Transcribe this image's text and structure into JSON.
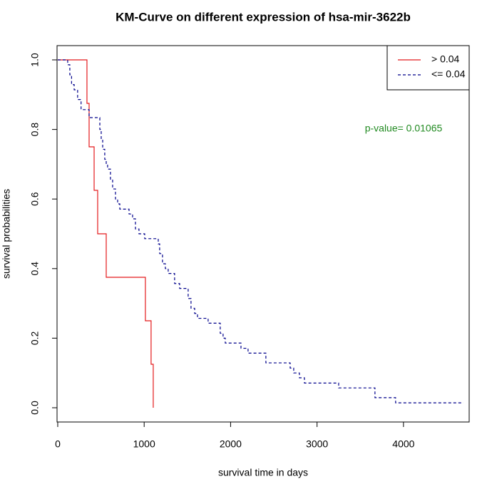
{
  "chart_data": {
    "type": "step",
    "title": "KM-Curve on different expression of hsa-mir-3622b",
    "x_label": "survival time in days",
    "y_label": "survival probabilities",
    "annotation": "p-value= 0.01065",
    "annotation_color": "#228b22",
    "xlim": [
      -8,
      4760
    ],
    "ylim": [
      -0.041,
      1.041
    ],
    "xticks": [
      0,
      1000,
      2000,
      3000,
      4000
    ],
    "yticks": [
      {
        "value": 0,
        "label": "0.0"
      },
      {
        "value": 0.2,
        "label": "0.2"
      },
      {
        "value": 0.4,
        "label": "0.4"
      },
      {
        "value": 0.6,
        "label": "0.6"
      },
      {
        "value": 0.8,
        "label": "0.8"
      },
      {
        "value": 1,
        "label": "1.0"
      }
    ],
    "legend_position": "top-right",
    "series": [
      {
        "name": "> 0.04",
        "color": "#e41a1c",
        "dash": "solid",
        "x": [
          0,
          338,
          363,
          421,
          462,
          561,
          1014,
          1080,
          1105
        ],
        "values": [
          1,
          0.875,
          0.75,
          0.625,
          0.5,
          0.375,
          0.25,
          0.125,
          0
        ]
      },
      {
        "name": "<= 0.04",
        "color": "#00008b",
        "dash": "dashed",
        "x": [
          0,
          115,
          140,
          160,
          190,
          230,
          270,
          363,
          487,
          503,
          520,
          544,
          561,
          577,
          610,
          635,
          668,
          693,
          718,
          825,
          866,
          899,
          940,
          1006,
          1163,
          1179,
          1212,
          1245,
          1278,
          1352,
          1410,
          1509,
          1542,
          1584,
          1617,
          1740,
          1880,
          1913,
          1938,
          2120,
          2202,
          2408,
          2689,
          2730,
          2796,
          2854,
          3250,
          3670,
          3909,
          4693
        ],
        "values": [
          1,
          0.986,
          0.957,
          0.929,
          0.914,
          0.886,
          0.857,
          0.834,
          0.8,
          0.771,
          0.743,
          0.714,
          0.7,
          0.686,
          0.657,
          0.629,
          0.6,
          0.586,
          0.571,
          0.557,
          0.543,
          0.514,
          0.5,
          0.486,
          0.471,
          0.443,
          0.414,
          0.4,
          0.386,
          0.357,
          0.343,
          0.314,
          0.286,
          0.271,
          0.257,
          0.243,
          0.214,
          0.2,
          0.186,
          0.171,
          0.157,
          0.129,
          0.114,
          0.1,
          0.086,
          0.071,
          0.057,
          0.029,
          0.014,
          0.014
        ]
      }
    ]
  }
}
